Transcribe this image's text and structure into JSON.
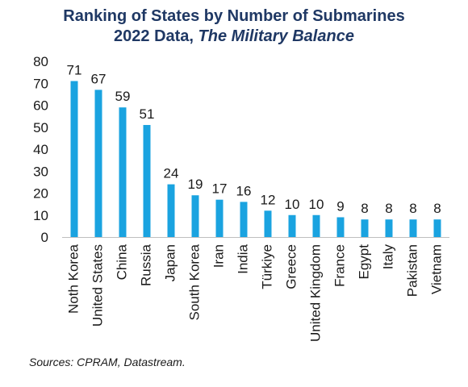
{
  "chart_data": {
    "type": "bar",
    "title": "Ranking of States by Number of Submarines",
    "subtitle_prefix": "2022 Data, ",
    "subtitle_source": "The Military Balance",
    "categories": [
      "Noth Korea",
      "United States",
      "China",
      "Russia",
      "Japan",
      "South Korea",
      "Iran",
      "India",
      "Türkiye",
      "Greece",
      "United Kingdom",
      "France",
      "Egypt",
      "Italy",
      "Pakistan",
      "Vietnam"
    ],
    "values": [
      71,
      67,
      59,
      51,
      24,
      19,
      17,
      16,
      12,
      10,
      10,
      9,
      8,
      8,
      8,
      8
    ],
    "ylim": [
      0,
      80
    ],
    "yticks": [
      0,
      10,
      20,
      30,
      40,
      50,
      60,
      70,
      80
    ],
    "grid": false,
    "bar_color": "#1aa3e0",
    "data_labels": true
  },
  "source_note": "Sources: CPRAM, Datastream."
}
